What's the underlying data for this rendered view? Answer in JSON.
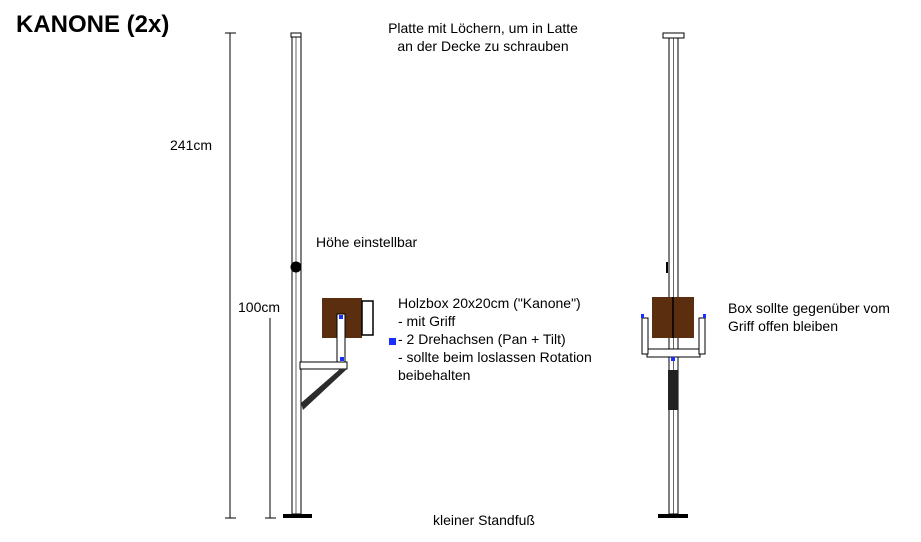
{
  "title": "KANONE (2x)",
  "dimensions": {
    "total_height": "241cm",
    "arm_height": "100cm"
  },
  "labels": {
    "ceiling_plate": [
      "Platte mit Löchern, um in Latte",
      "an der Decke zu schrauben"
    ],
    "height_adjust": "Höhe einstellbar",
    "box_description": [
      "Holzbox 20x20cm (\"Kanone\")",
      "- mit Griff",
      "- 2 Drehachsen (Pan + Tilt)",
      "- sollte beim loslassen Rotation",
      "beibehalten"
    ],
    "box_open_side": [
      "Box sollte gegenüber vom",
      "Griff offen bleiben"
    ],
    "base": "kleiner Standfuß"
  },
  "colors": {
    "wood_box": "#5c2e10",
    "axis_marker": "#1a2eff",
    "line": "#000000",
    "grip_dark": "#222222"
  }
}
